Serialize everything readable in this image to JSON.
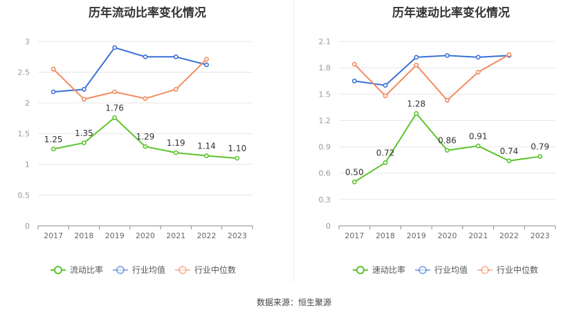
{
  "colors": {
    "primary": "#5cc42c",
    "average": "#3a6fd8",
    "median": "#f28a5e",
    "grid": "#e6e6e6",
    "axis": "#999999"
  },
  "source": "数据来源：恒生聚源",
  "chart_data": [
    {
      "type": "line",
      "title": "历年流动比率变化情况",
      "x": [
        "2017",
        "2018",
        "2019",
        "2020",
        "2021",
        "2022",
        "2023"
      ],
      "ylim": [
        0,
        3
      ],
      "yticks": [
        "0",
        "0.5",
        "1",
        "1.5",
        "2",
        "2.5",
        "3"
      ],
      "ytick_values": [
        0,
        0.5,
        1,
        1.5,
        2,
        2.5,
        3
      ],
      "grid": true,
      "legend_position": "bottom",
      "series": [
        {
          "name": "流动比率",
          "role": "primary",
          "values": [
            1.25,
            1.35,
            1.76,
            1.29,
            1.19,
            1.14,
            1.1
          ],
          "labels": [
            "1.25",
            "1.35",
            "1.76",
            "1.29",
            "1.19",
            "1.14",
            "1.10"
          ]
        },
        {
          "name": "行业均值",
          "role": "average",
          "values": [
            2.18,
            2.22,
            2.9,
            2.75,
            2.75,
            2.62,
            null
          ]
        },
        {
          "name": "行业中位数",
          "role": "median",
          "values": [
            2.55,
            2.06,
            2.18,
            2.07,
            2.22,
            2.71,
            null
          ]
        }
      ]
    },
    {
      "type": "line",
      "title": "历年速动比率变化情况",
      "x": [
        "2017",
        "2018",
        "2019",
        "2020",
        "2021",
        "2022",
        "2023"
      ],
      "ylim": [
        0,
        2.1
      ],
      "yticks": [
        "0",
        "0.3",
        "0.6",
        "0.9",
        "1.2",
        "1.5",
        "1.8",
        "2.1"
      ],
      "ytick_values": [
        0,
        0.3,
        0.6,
        0.9,
        1.2,
        1.5,
        1.8,
        2.1
      ],
      "grid": true,
      "legend_position": "bottom",
      "series": [
        {
          "name": "速动比率",
          "role": "primary",
          "values": [
            0.5,
            0.72,
            1.28,
            0.86,
            0.91,
            0.74,
            0.79
          ],
          "labels": [
            "0.50",
            "0.72",
            "1.28",
            "0.86",
            "0.91",
            "0.74",
            "0.79"
          ]
        },
        {
          "name": "行业均值",
          "role": "average",
          "values": [
            1.65,
            1.6,
            1.92,
            1.94,
            1.92,
            1.94,
            null
          ]
        },
        {
          "name": "行业中位数",
          "role": "median",
          "values": [
            1.84,
            1.48,
            1.83,
            1.43,
            1.75,
            1.95,
            null
          ]
        }
      ]
    }
  ]
}
